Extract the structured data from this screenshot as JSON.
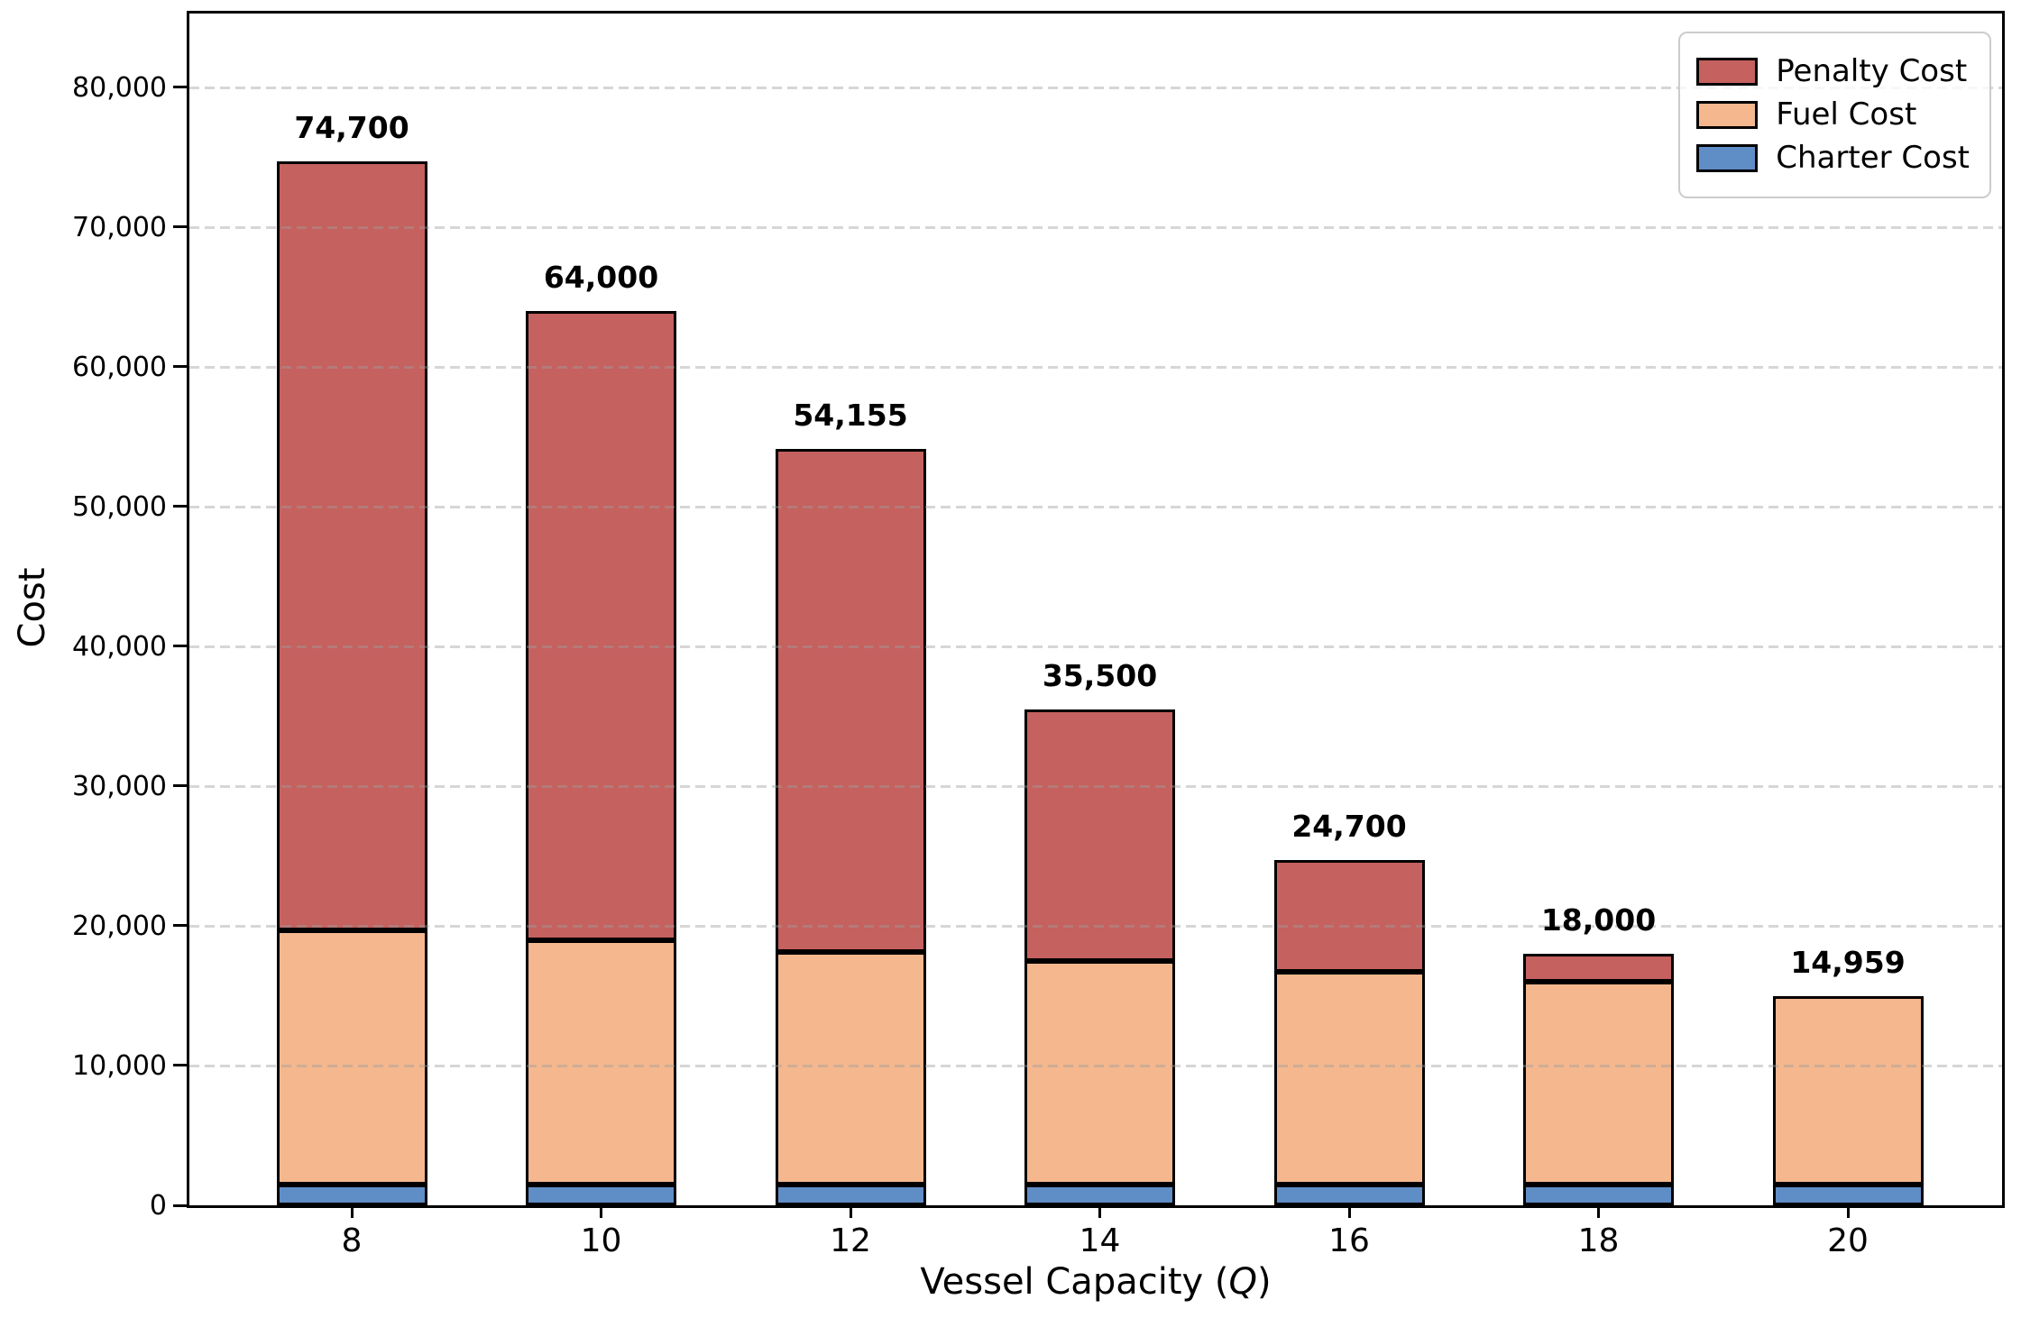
{
  "chart_data": {
    "type": "bar",
    "stacked": true,
    "title": "",
    "xlabel": "Vessel Capacity (Q)",
    "xlabel_parts": {
      "prefix": "Vessel Capacity (",
      "variable": "Q",
      "suffix": ")"
    },
    "ylabel": "Cost",
    "categories": [
      "8",
      "10",
      "12",
      "14",
      "16",
      "18",
      "20"
    ],
    "series": [
      {
        "name": "Charter Cost",
        "color": "#5f8dc6",
        "values": [
          1500,
          1500,
          1500,
          1500,
          1500,
          1500,
          1500
        ]
      },
      {
        "name": "Fuel Cost",
        "color": "#f4b78e",
        "values": [
          18200,
          17500,
          16655,
          16000,
          15200,
          14500,
          13459
        ]
      },
      {
        "name": "Penalty Cost",
        "color": "#c5615e",
        "values": [
          55000,
          45000,
          36000,
          18000,
          8000,
          2000,
          0
        ]
      }
    ],
    "totals": [
      74700,
      64000,
      54155,
      35500,
      24700,
      18000,
      14959
    ],
    "total_labels": [
      "74,700",
      "64,000",
      "54,155",
      "35,500",
      "24,700",
      "18,000",
      "14,959"
    ],
    "y_ticks": [
      0,
      10000,
      20000,
      30000,
      40000,
      50000,
      60000,
      70000,
      80000
    ],
    "y_tick_labels": [
      "0",
      "10,000",
      "20,000",
      "30,000",
      "40,000",
      "50,000",
      "60,000",
      "70,000",
      "80,000"
    ],
    "ylim": [
      0,
      85290
    ],
    "grid": {
      "axis": "y",
      "style": "dashed",
      "color": "#9e9e9e",
      "drawn_over_bars": true
    },
    "bar_edge_color": "#000000",
    "legend": {
      "position": "upper right",
      "entries": [
        "Penalty Cost",
        "Fuel Cost",
        "Charter Cost"
      ]
    }
  }
}
